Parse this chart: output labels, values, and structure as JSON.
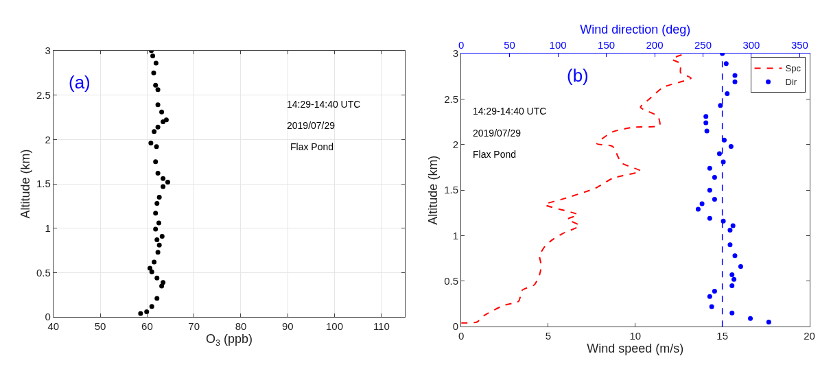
{
  "chart_data": [
    {
      "type": "scatter",
      "xlabel": "O$_{3}$ (ppb)",
      "ylabel": "Altitude (km)",
      "annotations": [
        "(a)",
        "14:29-14:40 UTC",
        "2019/07/29",
        "Flax Pond"
      ],
      "series": [
        {
          "color": "#000000",
          "x": [
            58.6,
            59.9,
            61.0,
            62.1,
            63.1,
            63.4,
            62.1,
            61.0,
            60.6,
            61.5,
            62.3,
            62.6,
            62.1,
            63.2,
            61.8,
            62.5,
            61.8,
            62.1,
            62.6,
            63.4,
            64.4,
            63.4,
            62.3,
            61.8,
            62.0,
            60.8,
            61.5,
            62.3,
            63.4,
            64.1,
            63.1,
            62.3,
            62.3,
            61.8,
            61.4,
            61.9,
            61.2,
            60.9
          ],
          "values": [
            0.04,
            0.06,
            0.12,
            0.21,
            0.35,
            0.39,
            0.44,
            0.51,
            0.55,
            0.62,
            0.73,
            0.81,
            0.87,
            0.91,
            0.99,
            1.06,
            1.17,
            1.28,
            1.35,
            1.47,
            1.52,
            1.56,
            1.62,
            1.75,
            1.92,
            1.96,
            2.09,
            2.14,
            2.2,
            2.22,
            2.31,
            2.39,
            2.56,
            2.61,
            2.75,
            2.86,
            2.94,
            3.0
          ]
        }
      ],
      "marker": "circle",
      "grid": true,
      "legend": false,
      "xlim": [
        40,
        115
      ],
      "xticks": [
        40,
        50,
        60,
        70,
        80,
        90,
        100,
        110
      ],
      "ylim": [
        0,
        3
      ],
      "yticks": [
        0,
        0.5,
        1,
        1.5,
        2,
        2.5,
        3
      ]
    },
    {
      "type": "line",
      "xlabel": "Wind speed (m/s)",
      "x2label": "Wind direction (deg)",
      "ylabel": "Altitude (km)",
      "annotations": [
        "(b)",
        "14:29-14:40 UTC",
        "2019/07/29",
        "Flax Pond"
      ],
      "series": [
        {
          "name": "Spc",
          "type": "line",
          "line_style": "dashed",
          "color": "#ff0000",
          "x": [
            0.0,
            0.9,
            1.3,
            2.4,
            3.3,
            3.5,
            4.2,
            4.5,
            4.6,
            4.5,
            4.8,
            5.2,
            5.8,
            6.8,
            6.1,
            6.7,
            4.8,
            5.8,
            7.7,
            8.7,
            10.3,
            9.2,
            8.7,
            7.8,
            8.7,
            9.9,
            11.4,
            11.3,
            10.3,
            10.8,
            11.6,
            13.2,
            12.6,
            12.6,
            12.1,
            12.9
          ],
          "values": [
            0.04,
            0.05,
            0.12,
            0.23,
            0.28,
            0.4,
            0.46,
            0.57,
            0.67,
            0.78,
            0.88,
            0.95,
            1.02,
            1.11,
            1.18,
            1.23,
            1.34,
            1.4,
            1.52,
            1.63,
            1.71,
            1.8,
            1.98,
            2.01,
            2.14,
            2.19,
            2.21,
            2.31,
            2.41,
            2.5,
            2.63,
            2.73,
            2.79,
            2.89,
            2.94,
            3.0
          ]
        },
        {
          "name": "Dir",
          "type": "scatter",
          "axis": "x2",
          "marker": "circle",
          "color": "#0000ff",
          "x": [
            318,
            299,
            280,
            259,
            257,
            262,
            280,
            282,
            280,
            289,
            283,
            278,
            278,
            281,
            271,
            257,
            245,
            249,
            262,
            257,
            262,
            257,
            271,
            267,
            279,
            272,
            254,
            253,
            253,
            268,
            275,
            283,
            283,
            274,
            270
          ],
          "values": [
            0.05,
            0.09,
            0.15,
            0.22,
            0.33,
            0.39,
            0.45,
            0.52,
            0.57,
            0.66,
            0.78,
            0.9,
            1.06,
            1.11,
            1.16,
            1.19,
            1.29,
            1.35,
            1.4,
            1.5,
            1.64,
            1.74,
            1.81,
            1.9,
            1.98,
            2.05,
            2.15,
            2.24,
            2.31,
            2.43,
            2.56,
            2.69,
            2.76,
            2.89,
            3.0
          ]
        }
      ],
      "ref_lines": [
        {
          "axis": "x2",
          "value": 270,
          "color": "#0000ff",
          "line_style": "dashed"
        }
      ],
      "grid": false,
      "legend": "top right",
      "xlim": [
        0,
        20
      ],
      "xticks": [
        0,
        5,
        10,
        15,
        20
      ],
      "x2lim": [
        0,
        360
      ],
      "x2ticks": [
        0,
        50,
        100,
        150,
        200,
        250,
        300,
        350
      ],
      "ylim": [
        0,
        3
      ],
      "yticks": [
        0,
        0.5,
        1,
        1.5,
        2,
        2.5,
        3
      ]
    }
  ]
}
